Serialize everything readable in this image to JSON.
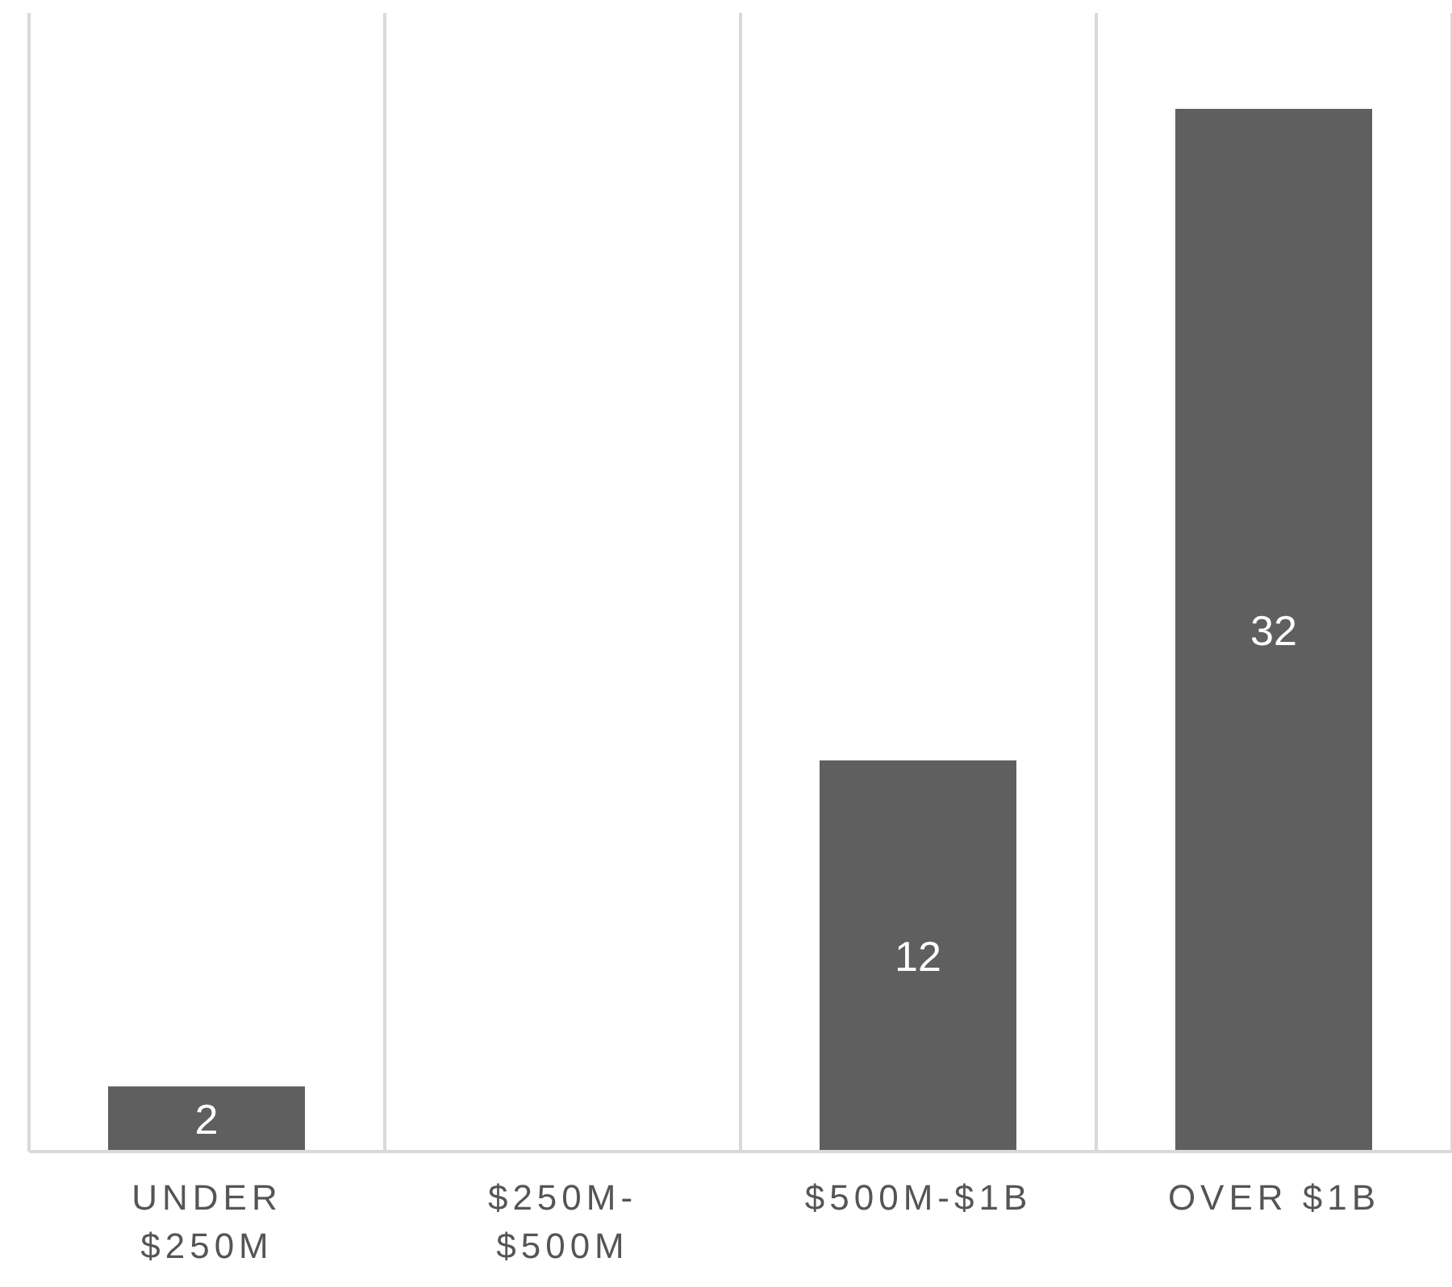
{
  "chart_data": {
    "type": "bar",
    "categories": [
      "UNDER $250M",
      "$250M-$500M",
      "$500M-$1B",
      "OVER $1B"
    ],
    "values": [
      2,
      0,
      12,
      32
    ],
    "value_labels": [
      "2",
      null,
      "12",
      "32"
    ],
    "color": "#5f5f5f",
    "grid": "x"
  }
}
